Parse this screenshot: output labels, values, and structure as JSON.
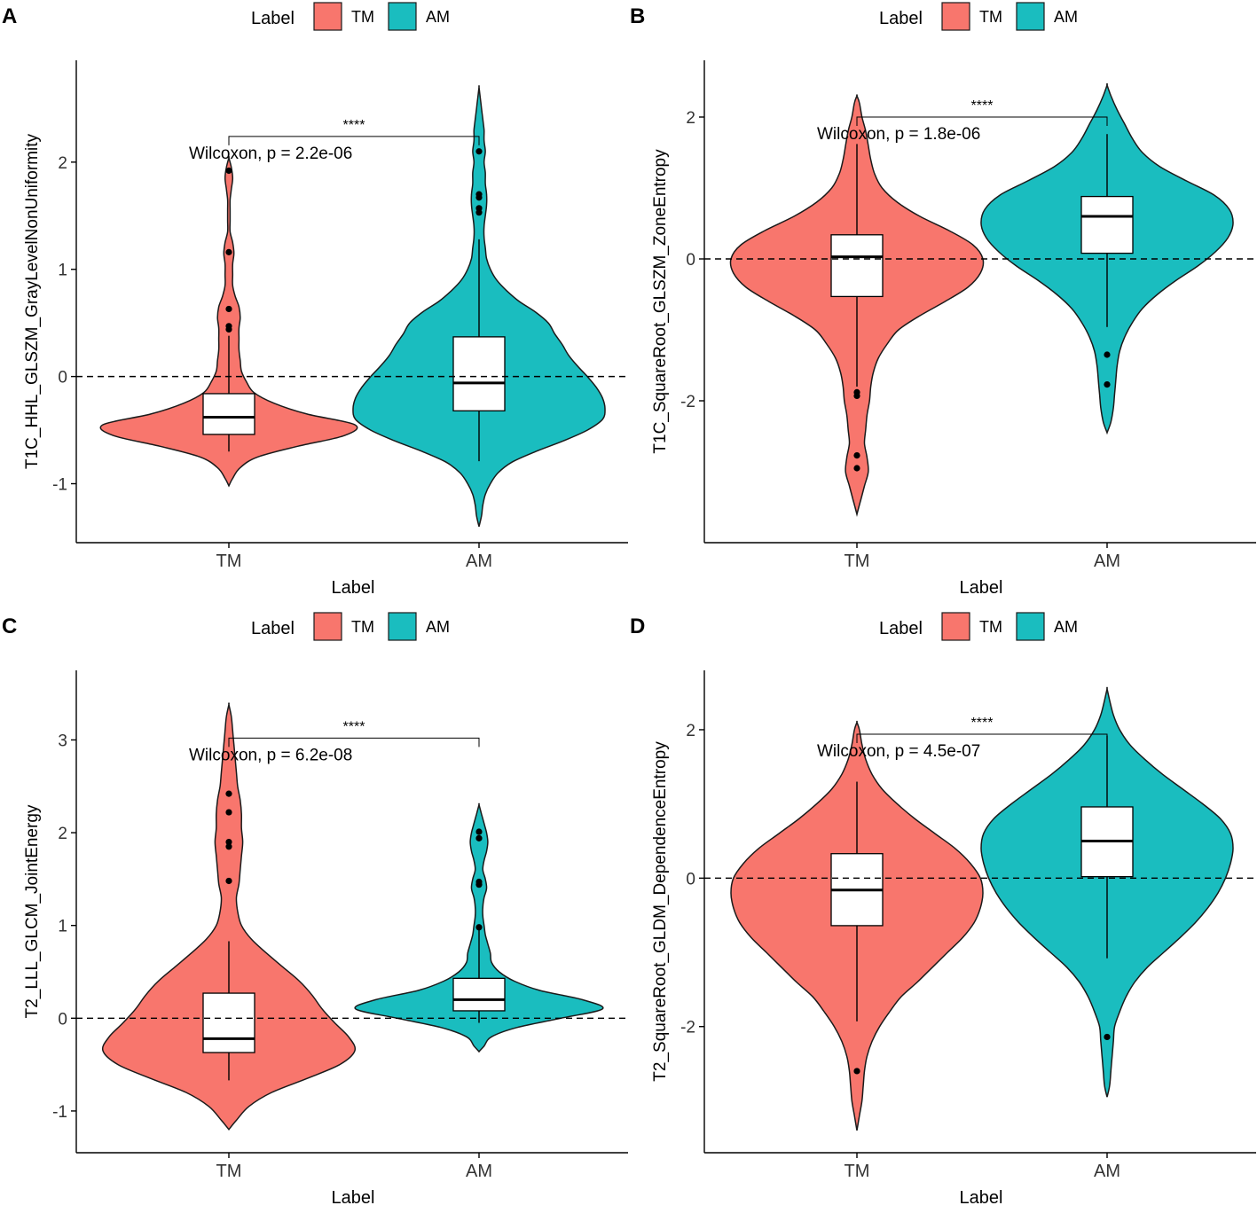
{
  "legend_title": "Label",
  "colors": {
    "TM": "#F8766D",
    "AM": "#1ABDBF",
    "stroke": "#1a1a1a"
  },
  "chart_data": [
    {
      "panel": "A",
      "type": "violin",
      "title": "",
      "xlabel": "Label",
      "ylabel": "T1C_HHL_GLSZM_GrayLevelNonUniformity",
      "categories": [
        "TM",
        "AM"
      ],
      "legend": [
        "TM",
        "AM"
      ],
      "ylim": [
        -1.55,
        2.95
      ],
      "yticks": [
        -1,
        0,
        1,
        2
      ],
      "reference_line": 0,
      "test_label": "Wilcoxon, p = 2.2e-06",
      "significance": "****",
      "bracket_y": 2.24,
      "series": [
        {
          "name": "TM",
          "box": {
            "whisker_low": -0.7,
            "q1": -0.54,
            "median": -0.38,
            "q3": -0.16,
            "whisker_high": 0.38
          },
          "outliers": [
            0.44,
            0.47,
            0.63,
            1.16,
            1.92
          ],
          "violin": {
            "ymin": -1.02,
            "ymax": 2.04,
            "y": [
              -1.02,
              -0.95,
              -0.85,
              -0.75,
              -0.65,
              -0.55,
              -0.45,
              -0.35,
              -0.25,
              -0.15,
              -0.05,
              0.05,
              0.15,
              0.25,
              0.35,
              0.45,
              0.55,
              0.65,
              0.75,
              0.85,
              0.95,
              1.05,
              1.15,
              1.25,
              1.35,
              1.45,
              1.55,
              1.65,
              1.75,
              1.85,
              1.95,
              2.04
            ],
            "w": [
              0,
              0.03,
              0.09,
              0.23,
              0.55,
              0.92,
              1.0,
              0.62,
              0.36,
              0.2,
              0.14,
              0.1,
              0.09,
              0.08,
              0.08,
              0.08,
              0.09,
              0.08,
              0.05,
              0.03,
              0.03,
              0.03,
              0.04,
              0.03,
              0.01,
              0.01,
              0.01,
              0.01,
              0.02,
              0.03,
              0.02,
              0
            ]
          }
        },
        {
          "name": "AM",
          "box": {
            "whisker_low": -0.79,
            "q1": -0.32,
            "median": -0.06,
            "q3": 0.37,
            "whisker_high": 1.28
          },
          "outliers": [
            1.53,
            1.57,
            1.67,
            1.7,
            2.1
          ],
          "violin": {
            "ymin": -1.4,
            "ymax": 2.7,
            "y": [
              -1.4,
              -1.3,
              -1.2,
              -1.1,
              -1.0,
              -0.9,
              -0.8,
              -0.7,
              -0.6,
              -0.5,
              -0.4,
              -0.3,
              -0.2,
              -0.1,
              0.0,
              0.1,
              0.2,
              0.3,
              0.4,
              0.5,
              0.6,
              0.7,
              0.8,
              0.9,
              1.0,
              1.1,
              1.2,
              1.3,
              1.4,
              1.5,
              1.6,
              1.7,
              1.8,
              1.9,
              2.0,
              2.1,
              2.2,
              2.3,
              2.4,
              2.5,
              2.6,
              2.7
            ],
            "w": [
              0,
              0.02,
              0.03,
              0.05,
              0.09,
              0.15,
              0.26,
              0.45,
              0.67,
              0.86,
              0.98,
              1.0,
              0.98,
              0.93,
              0.86,
              0.78,
              0.71,
              0.66,
              0.6,
              0.55,
              0.45,
              0.32,
              0.22,
              0.14,
              0.09,
              0.06,
              0.05,
              0.04,
              0.04,
              0.05,
              0.06,
              0.06,
              0.05,
              0.05,
              0.04,
              0.05,
              0.04,
              0.04,
              0.03,
              0.02,
              0.01,
              0
            ]
          }
        }
      ]
    },
    {
      "panel": "B",
      "type": "violin",
      "title": "",
      "xlabel": "Label",
      "ylabel": "T1C_SquareRoot_GLSZM_ZoneEntropy",
      "categories": [
        "TM",
        "AM"
      ],
      "legend": [
        "TM",
        "AM"
      ],
      "ylim": [
        -4.0,
        2.8
      ],
      "yticks": [
        -2,
        0,
        2
      ],
      "reference_line": 0,
      "test_label": "Wilcoxon, p = 1.8e-06",
      "significance": "****",
      "bracket_y": 2.0,
      "series": [
        {
          "name": "TM",
          "box": {
            "whisker_low": -1.8,
            "q1": -0.53,
            "median": 0.03,
            "q3": 0.34,
            "whisker_high": 1.62
          },
          "outliers": [
            -1.88,
            -1.93,
            -2.77,
            -2.95
          ],
          "violin": {
            "ymin": -3.6,
            "ymax": 2.3,
            "y": [
              -3.6,
              -3.4,
              -3.2,
              -3.0,
              -2.8,
              -2.6,
              -2.4,
              -2.2,
              -2.0,
              -1.8,
              -1.6,
              -1.4,
              -1.2,
              -1.0,
              -0.8,
              -0.6,
              -0.4,
              -0.2,
              0.0,
              0.2,
              0.4,
              0.6,
              0.8,
              1.0,
              1.2,
              1.4,
              1.6,
              1.8,
              2.0,
              2.2,
              2.3
            ],
            "w": [
              0,
              0.03,
              0.06,
              0.09,
              0.08,
              0.06,
              0.07,
              0.08,
              0.1,
              0.11,
              0.13,
              0.17,
              0.24,
              0.33,
              0.5,
              0.7,
              0.88,
              0.98,
              1.0,
              0.92,
              0.73,
              0.5,
              0.32,
              0.2,
              0.14,
              0.11,
              0.09,
              0.07,
              0.04,
              0.02,
              0
            ]
          }
        },
        {
          "name": "AM",
          "box": {
            "whisker_low": -0.96,
            "q1": 0.08,
            "median": 0.6,
            "q3": 0.88,
            "whisker_high": 1.76
          },
          "outliers": [
            -1.35,
            -1.77
          ],
          "violin": {
            "ymin": -2.45,
            "ymax": 2.45,
            "y": [
              -2.45,
              -2.3,
              -2.1,
              -1.9,
              -1.7,
              -1.5,
              -1.3,
              -1.1,
              -0.9,
              -0.7,
              -0.5,
              -0.3,
              -0.1,
              0.1,
              0.3,
              0.5,
              0.7,
              0.9,
              1.1,
              1.3,
              1.5,
              1.7,
              1.9,
              2.1,
              2.3,
              2.45
            ],
            "w": [
              0,
              0.03,
              0.05,
              0.06,
              0.07,
              0.08,
              0.1,
              0.14,
              0.2,
              0.28,
              0.4,
              0.55,
              0.72,
              0.86,
              0.96,
              1.0,
              0.97,
              0.85,
              0.63,
              0.42,
              0.28,
              0.2,
              0.14,
              0.08,
              0.03,
              0
            ]
          }
        }
      ]
    },
    {
      "panel": "C",
      "type": "violin",
      "title": "",
      "xlabel": "Label",
      "ylabel": "T2_LLL_GLCM_JointEnergy",
      "categories": [
        "TM",
        "AM"
      ],
      "legend": [
        "TM",
        "AM"
      ],
      "ylim": [
        -1.45,
        3.75
      ],
      "yticks": [
        -1,
        0,
        1,
        2,
        3
      ],
      "reference_line": 0,
      "test_label": "Wilcoxon, p = 6.2e-08",
      "significance": "****",
      "bracket_y": 3.02,
      "series": [
        {
          "name": "TM",
          "box": {
            "whisker_low": -0.67,
            "q1": -0.37,
            "median": -0.22,
            "q3": 0.27,
            "whisker_high": 0.83
          },
          "outliers": [
            1.48,
            1.85,
            1.9,
            2.22,
            2.42
          ],
          "violin": {
            "ymin": -1.2,
            "ymax": 3.38,
            "y": [
              -1.2,
              -1.1,
              -0.95,
              -0.8,
              -0.65,
              -0.5,
              -0.35,
              -0.2,
              -0.05,
              0.1,
              0.25,
              0.4,
              0.55,
              0.7,
              0.85,
              1.0,
              1.15,
              1.3,
              1.45,
              1.6,
              1.75,
              1.9,
              2.05,
              2.2,
              2.35,
              2.5,
              2.65,
              2.8,
              2.95,
              3.1,
              3.25,
              3.38
            ],
            "w": [
              0,
              0.06,
              0.16,
              0.34,
              0.62,
              0.88,
              1.0,
              0.95,
              0.84,
              0.74,
              0.66,
              0.56,
              0.43,
              0.3,
              0.18,
              0.1,
              0.07,
              0.06,
              0.08,
              0.09,
              0.1,
              0.11,
              0.1,
              0.1,
              0.09,
              0.07,
              0.06,
              0.05,
              0.04,
              0.03,
              0.02,
              0
            ]
          }
        },
        {
          "name": "AM",
          "box": {
            "whisker_low": -0.05,
            "q1": 0.08,
            "median": 0.2,
            "q3": 0.43,
            "whisker_high": 0.95
          },
          "outliers": [
            0.98,
            1.44,
            1.47,
            1.94,
            2.01
          ],
          "violin": {
            "ymin": -0.36,
            "ymax": 2.3,
            "y": [
              -0.36,
              -0.3,
              -0.2,
              -0.1,
              0.0,
              0.1,
              0.2,
              0.3,
              0.4,
              0.5,
              0.6,
              0.7,
              0.8,
              0.9,
              1.0,
              1.1,
              1.2,
              1.3,
              1.4,
              1.5,
              1.6,
              1.7,
              1.8,
              1.9,
              2.0,
              2.1,
              2.2,
              2.3
            ],
            "w": [
              0,
              0.04,
              0.1,
              0.3,
              0.65,
              0.98,
              0.82,
              0.48,
              0.28,
              0.16,
              0.1,
              0.09,
              0.07,
              0.05,
              0.04,
              0.03,
              0.03,
              0.04,
              0.06,
              0.05,
              0.03,
              0.04,
              0.06,
              0.07,
              0.06,
              0.04,
              0.02,
              0
            ]
          }
        }
      ]
    },
    {
      "panel": "D",
      "type": "violin",
      "title": "",
      "xlabel": "Label",
      "ylabel": "T2_SquareRoot_GLDM_DependenceEntropy",
      "categories": [
        "TM",
        "AM"
      ],
      "legend": [
        "TM",
        "AM"
      ],
      "ylim": [
        -3.7,
        2.8
      ],
      "yticks": [
        -2,
        0,
        2
      ],
      "reference_line": 0,
      "test_label": "Wilcoxon, p = 4.5e-07",
      "significance": "****",
      "bracket_y": 1.94,
      "series": [
        {
          "name": "TM",
          "box": {
            "whisker_low": -1.93,
            "q1": -0.64,
            "median": -0.16,
            "q3": 0.33,
            "whisker_high": 1.3
          },
          "outliers": [
            -2.6
          ],
          "violin": {
            "ymin": -3.4,
            "ymax": 2.1,
            "y": [
              -3.4,
              -3.2,
              -3.0,
              -2.8,
              -2.6,
              -2.4,
              -2.2,
              -2.0,
              -1.8,
              -1.6,
              -1.4,
              -1.2,
              -1.0,
              -0.8,
              -0.6,
              -0.4,
              -0.2,
              0.0,
              0.2,
              0.4,
              0.6,
              0.8,
              1.0,
              1.2,
              1.4,
              1.6,
              1.8,
              2.0,
              2.1
            ],
            "w": [
              0,
              0.02,
              0.04,
              0.05,
              0.06,
              0.08,
              0.12,
              0.18,
              0.26,
              0.35,
              0.48,
              0.6,
              0.72,
              0.84,
              0.93,
              0.98,
              1.0,
              0.98,
              0.9,
              0.78,
              0.62,
              0.46,
              0.32,
              0.2,
              0.12,
              0.07,
              0.04,
              0.02,
              0
            ]
          }
        },
        {
          "name": "AM",
          "box": {
            "whisker_low": -1.08,
            "q1": 0.02,
            "median": 0.5,
            "q3": 0.96,
            "whisker_high": 1.92
          },
          "outliers": [
            -2.14
          ],
          "violin": {
            "ymin": -2.95,
            "ymax": 2.55,
            "y": [
              -2.95,
              -2.8,
              -2.6,
              -2.4,
              -2.2,
              -2.0,
              -1.8,
              -1.6,
              -1.4,
              -1.2,
              -1.0,
              -0.8,
              -0.6,
              -0.4,
              -0.2,
              0.0,
              0.2,
              0.4,
              0.6,
              0.8,
              1.0,
              1.2,
              1.4,
              1.6,
              1.8,
              2.0,
              2.2,
              2.4,
              2.55
            ],
            "w": [
              0,
              0.02,
              0.03,
              0.04,
              0.05,
              0.06,
              0.1,
              0.15,
              0.22,
              0.32,
              0.45,
              0.58,
              0.7,
              0.8,
              0.88,
              0.94,
              0.98,
              1.0,
              0.98,
              0.9,
              0.76,
              0.6,
              0.44,
              0.3,
              0.18,
              0.1,
              0.05,
              0.02,
              0
            ]
          }
        }
      ]
    }
  ]
}
